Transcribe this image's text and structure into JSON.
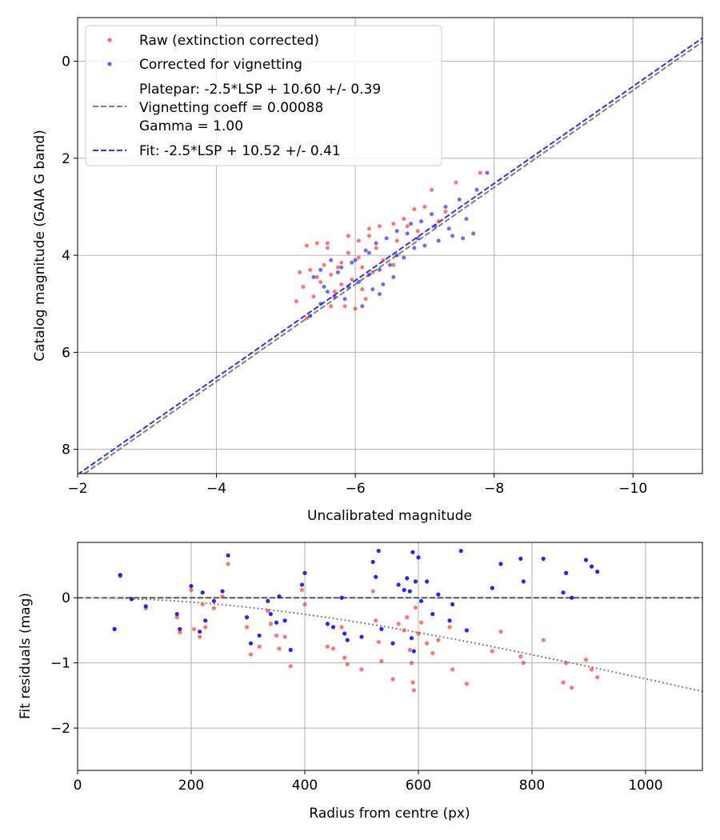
{
  "chart_data": [
    {
      "type": "scatter",
      "xlabel": "Uncalibrated magnitude",
      "ylabel": "Catalog magnitude (GAIA G band)",
      "xlim": [
        -2,
        -11
      ],
      "ylim": [
        8.5,
        -0.9
      ],
      "x_ticks": [
        -2,
        -4,
        -6,
        -8,
        -10
      ],
      "x_tick_labels": [
        "−2",
        "−4",
        "−6",
        "−8",
        "−10"
      ],
      "y_ticks": [
        0,
        2,
        4,
        6,
        8
      ],
      "y_tick_labels": [
        "0",
        "2",
        "4",
        "6",
        "8"
      ],
      "grid": true,
      "legend_position": "top-left",
      "legend": {
        "raw": "Raw (extinction corrected)",
        "corrected": "Corrected for vignetting",
        "platepar_line1": "Platepar: -2.5*LSP + 10.60 +/- 0.39",
        "platepar_line2": "Vignetting coeff = 0.00088",
        "platepar_line3": "Gamma = 1.00",
        "fit": "Fit: -2.5*LSP + 10.52 +/- 0.41"
      },
      "lines": [
        {
          "name": "platepar",
          "slope": 1,
          "intercept": 10.6,
          "style": "dashed",
          "color": "#7f7f7f"
        },
        {
          "name": "fit",
          "slope": 1,
          "intercept": 10.52,
          "style": "dashed",
          "color": "#3333ee"
        }
      ],
      "series": [
        {
          "name": "Raw (extinction corrected)",
          "color": "#ff3030",
          "points": [
            [
              -5.3,
              3.8
            ],
            [
              -5.45,
              3.75
            ],
            [
              -5.6,
              3.85
            ],
            [
              -5.9,
              3.6
            ],
            [
              -6.05,
              3.7
            ],
            [
              -6.2,
              3.45
            ],
            [
              -6.35,
              3.4
            ],
            [
              -6.55,
              3.35
            ],
            [
              -6.7,
              3.25
            ],
            [
              -6.85,
              3.05
            ],
            [
              -7.0,
              3.0
            ],
            [
              -7.1,
              2.65
            ],
            [
              -7.3,
              3.1
            ],
            [
              -7.45,
              2.5
            ],
            [
              -7.8,
              2.3
            ],
            [
              -5.2,
              4.35
            ],
            [
              -5.35,
              4.3
            ],
            [
              -5.5,
              4.55
            ],
            [
              -5.65,
              4.4
            ],
            [
              -5.8,
              4.6
            ],
            [
              -5.95,
              4.5
            ],
            [
              -6.1,
              4.7
            ],
            [
              -6.25,
              4.35
            ],
            [
              -6.4,
              4.1
            ],
            [
              -6.55,
              4.2
            ],
            [
              -5.25,
              4.65
            ],
            [
              -5.4,
              4.85
            ],
            [
              -5.7,
              4.75
            ],
            [
              -5.85,
              5.05
            ],
            [
              -6.0,
              5.1
            ],
            [
              -6.15,
              4.9
            ],
            [
              -5.55,
              4.2
            ],
            [
              -5.75,
              4.25
            ],
            [
              -6.3,
              3.85
            ],
            [
              -6.6,
              3.7
            ],
            [
              -6.9,
              3.5
            ],
            [
              -7.2,
              3.3
            ],
            [
              -5.15,
              4.95
            ],
            [
              -5.3,
              5.3
            ],
            [
              -5.65,
              5.05
            ],
            [
              -5.9,
              3.95
            ],
            [
              -6.05,
              4.05
            ],
            [
              -5.45,
              4.45
            ],
            [
              -6.2,
              3.6
            ],
            [
              -6.75,
              3.4
            ],
            [
              -5.6,
              3.75
            ],
            [
              -5.8,
              4.15
            ],
            [
              -6.1,
              4.25
            ]
          ]
        },
        {
          "name": "Corrected for vignetting",
          "color": "#2020ee",
          "points": [
            [
              -5.35,
              5.25
            ],
            [
              -5.5,
              5.0
            ],
            [
              -5.7,
              4.85
            ],
            [
              -5.9,
              4.65
            ],
            [
              -6.05,
              4.55
            ],
            [
              -6.2,
              4.4
            ],
            [
              -6.35,
              4.3
            ],
            [
              -6.5,
              4.2
            ],
            [
              -6.7,
              4.05
            ],
            [
              -6.85,
              3.85
            ],
            [
              -7.0,
              3.8
            ],
            [
              -7.2,
              3.7
            ],
            [
              -7.35,
              3.45
            ],
            [
              -7.55,
              3.65
            ],
            [
              -7.7,
              3.55
            ],
            [
              -5.4,
              4.45
            ],
            [
              -5.55,
              4.65
            ],
            [
              -5.75,
              4.35
            ],
            [
              -5.95,
              4.15
            ],
            [
              -6.15,
              3.9
            ],
            [
              -6.3,
              3.75
            ],
            [
              -6.45,
              3.65
            ],
            [
              -6.6,
              3.5
            ],
            [
              -6.8,
              3.35
            ],
            [
              -6.95,
              3.3
            ],
            [
              -7.1,
              3.15
            ],
            [
              -7.3,
              3.0
            ],
            [
              -7.5,
              2.85
            ],
            [
              -7.75,
              2.65
            ],
            [
              -7.9,
              2.3
            ],
            [
              -5.6,
              4.75
            ],
            [
              -5.85,
              4.9
            ],
            [
              -6.1,
              5.05
            ],
            [
              -6.25,
              4.7
            ],
            [
              -6.4,
              4.6
            ],
            [
              -6.55,
              4.45
            ],
            [
              -5.65,
              4.1
            ],
            [
              -5.8,
              4.25
            ],
            [
              -6.0,
              4.1
            ],
            [
              -6.2,
              3.95
            ],
            [
              -6.75,
              3.55
            ],
            [
              -7.15,
              3.4
            ],
            [
              -7.4,
              3.6
            ],
            [
              -6.35,
              4.8
            ],
            [
              -6.6,
              4.0
            ],
            [
              -5.5,
              4.3
            ],
            [
              -7.6,
              3.25
            ],
            [
              -6.9,
              3.65
            ]
          ]
        }
      ]
    },
    {
      "type": "scatter",
      "xlabel": "Radius from centre (px)",
      "ylabel": "Fit residuals (mag)",
      "xlim": [
        0,
        1100
      ],
      "ylim": [
        -2.65,
        0.85
      ],
      "x_ticks": [
        0,
        200,
        400,
        600,
        800,
        1000
      ],
      "x_tick_labels": [
        "0",
        "200",
        "400",
        "600",
        "800",
        "1000"
      ],
      "y_ticks": [
        -2,
        -1,
        0
      ],
      "y_tick_labels": [
        "−2",
        "−1",
        "0"
      ],
      "grid": true,
      "lines": [
        {
          "name": "zero",
          "style": "dashed",
          "color": "#555555",
          "value": 0
        },
        {
          "name": "vignetting-curve",
          "style": "dotted",
          "color": "#808080",
          "coeff": 0.00088
        }
      ],
      "series": [
        {
          "name": "Raw",
          "color": "#ff3030",
          "points": [
            [
              65,
              -0.48
            ],
            [
              75,
              0.33
            ],
            [
              95,
              -0.02
            ],
            [
              120,
              -0.16
            ],
            [
              175,
              -0.3
            ],
            [
              180,
              -0.53
            ],
            [
              200,
              0.12
            ],
            [
              205,
              -0.48
            ],
            [
              215,
              -0.6
            ],
            [
              220,
              -0.1
            ],
            [
              225,
              -0.45
            ],
            [
              240,
              -0.16
            ],
            [
              255,
              0.02
            ],
            [
              265,
              0.52
            ],
            [
              298,
              -0.45
            ],
            [
              305,
              -0.87
            ],
            [
              320,
              -0.75
            ],
            [
              335,
              -0.2
            ],
            [
              340,
              -0.4
            ],
            [
              350,
              -0.58
            ],
            [
              355,
              -0.78
            ],
            [
              365,
              -0.6
            ],
            [
              375,
              -1.05
            ],
            [
              395,
              0.12
            ],
            [
              400,
              -0.1
            ],
            [
              440,
              -0.75
            ],
            [
              450,
              -0.78
            ],
            [
              465,
              -0.45
            ],
            [
              470,
              -0.92
            ],
            [
              475,
              -1.02
            ],
            [
              500,
              -1.1
            ],
            [
              520,
              0.1
            ],
            [
              525,
              -0.35
            ],
            [
              530,
              -0.68
            ],
            [
              535,
              -0.97
            ],
            [
              555,
              -1.25
            ],
            [
              565,
              -0.4
            ],
            [
              575,
              -0.5
            ],
            [
              580,
              -0.3
            ],
            [
              585,
              -0.8
            ],
            [
              588,
              -1.0
            ],
            [
              590,
              -1.3
            ],
            [
              592,
              -1.42
            ],
            [
              595,
              -0.15
            ],
            [
              600,
              -0.55
            ],
            [
              605,
              -0.38
            ],
            [
              615,
              -0.7
            ],
            [
              625,
              -0.85
            ],
            [
              635,
              -0.65
            ],
            [
              655,
              -0.45
            ],
            [
              660,
              -1.1
            ],
            [
              685,
              -1.32
            ],
            [
              730,
              -0.82
            ],
            [
              745,
              -0.52
            ],
            [
              780,
              -0.9
            ],
            [
              785,
              -1.0
            ],
            [
              820,
              -0.65
            ],
            [
              855,
              -1.3
            ],
            [
              860,
              -1.0
            ],
            [
              870,
              -1.38
            ],
            [
              895,
              -0.95
            ],
            [
              905,
              -1.1
            ],
            [
              915,
              -1.22
            ]
          ]
        },
        {
          "name": "Corrected",
          "color": "#1010ee",
          "points": [
            [
              65,
              -0.48
            ],
            [
              75,
              0.35
            ],
            [
              95,
              -0.02
            ],
            [
              120,
              -0.13
            ],
            [
              175,
              -0.25
            ],
            [
              180,
              -0.48
            ],
            [
              200,
              0.18
            ],
            [
              215,
              -0.52
            ],
            [
              220,
              0.08
            ],
            [
              225,
              -0.35
            ],
            [
              240,
              -0.05
            ],
            [
              255,
              0.1
            ],
            [
              265,
              0.65
            ],
            [
              298,
              -0.3
            ],
            [
              305,
              -0.7
            ],
            [
              320,
              -0.58
            ],
            [
              335,
              -0.05
            ],
            [
              340,
              -0.25
            ],
            [
              350,
              -0.38
            ],
            [
              355,
              0.02
            ],
            [
              365,
              -0.35
            ],
            [
              375,
              -0.8
            ],
            [
              395,
              0.2
            ],
            [
              400,
              0.38
            ],
            [
              440,
              -0.4
            ],
            [
              450,
              -0.45
            ],
            [
              465,
              0.0
            ],
            [
              470,
              -0.55
            ],
            [
              475,
              -0.65
            ],
            [
              500,
              -0.6
            ],
            [
              520,
              0.55
            ],
            [
              525,
              0.32
            ],
            [
              530,
              0.72
            ],
            [
              535,
              -0.48
            ],
            [
              555,
              -0.7
            ],
            [
              565,
              0.2
            ],
            [
              575,
              0.12
            ],
            [
              580,
              0.3
            ],
            [
              585,
              0.1
            ],
            [
              588,
              -0.62
            ],
            [
              590,
              0.7
            ],
            [
              592,
              -0.82
            ],
            [
              595,
              0.25
            ],
            [
              600,
              0.62
            ],
            [
              605,
              -0.05
            ],
            [
              615,
              0.25
            ],
            [
              625,
              -0.25
            ],
            [
              635,
              0.05
            ],
            [
              655,
              -0.35
            ],
            [
              660,
              -0.1
            ],
            [
              685,
              -0.5
            ],
            [
              675,
              0.72
            ],
            [
              730,
              0.15
            ],
            [
              745,
              0.52
            ],
            [
              780,
              0.6
            ],
            [
              785,
              0.25
            ],
            [
              820,
              0.6
            ],
            [
              855,
              0.08
            ],
            [
              860,
              0.38
            ],
            [
              870,
              0.0
            ],
            [
              895,
              0.58
            ],
            [
              905,
              0.48
            ],
            [
              915,
              0.4
            ]
          ]
        }
      ]
    }
  ]
}
